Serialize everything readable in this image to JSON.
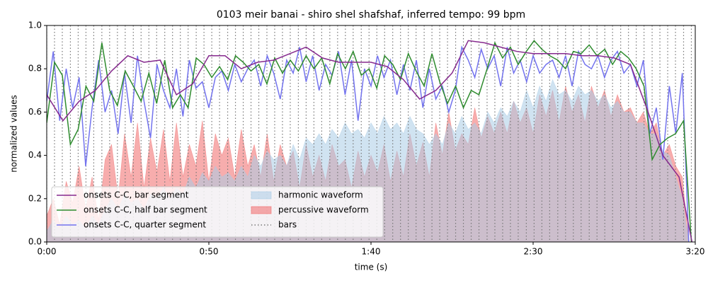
{
  "chart_data": {
    "type": "line",
    "title": "0103 meir banai - shiro shel shafshaf, inferred tempo: 99 bpm",
    "x_label": "time (s)",
    "y_label": "normalized values",
    "xlim": [
      0,
      200
    ],
    "ylim": [
      0,
      1
    ],
    "xticks": [
      {
        "value": 0,
        "label": "0:00"
      },
      {
        "value": 50,
        "label": "0:50"
      },
      {
        "value": 100,
        "label": "1:40"
      },
      {
        "value": 150,
        "label": "2:30"
      },
      {
        "value": 200,
        "label": "3:20"
      }
    ],
    "yticks": [
      {
        "value": 0,
        "label": "0.0"
      },
      0.2,
      0.4,
      0.6,
      0.8,
      {
        "value": 1,
        "label": "1.0"
      }
    ],
    "legend": "lower left",
    "series": [
      {
        "name": "onsets C-C, bar segment",
        "type": "line",
        "color": "#862a8e",
        "x": [
          0,
          5,
          10,
          15,
          20,
          25,
          30,
          35,
          40,
          45,
          50,
          55,
          60,
          65,
          70,
          75,
          80,
          85,
          90,
          95,
          100,
          105,
          110,
          115,
          120,
          125,
          130,
          135,
          140,
          145,
          150,
          155,
          160,
          165,
          170,
          175,
          180,
          185,
          190,
          195,
          199
        ],
        "values": [
          0.68,
          0.56,
          0.65,
          0.7,
          0.79,
          0.86,
          0.83,
          0.84,
          0.68,
          0.73,
          0.86,
          0.86,
          0.8,
          0.83,
          0.84,
          0.87,
          0.9,
          0.85,
          0.83,
          0.83,
          0.83,
          0.81,
          0.75,
          0.66,
          0.7,
          0.78,
          0.93,
          0.92,
          0.9,
          0.88,
          0.87,
          0.87,
          0.87,
          0.86,
          0.86,
          0.85,
          0.82,
          0.62,
          0.4,
          0.3,
          0.0
        ]
      },
      {
        "name": "onsets C-C, half bar segment",
        "type": "line",
        "color": "#2e8b2e",
        "x": [
          0,
          2.4,
          4.8,
          7.3,
          9.7,
          12.1,
          14.5,
          17.0,
          19.4,
          21.8,
          24.2,
          26.7,
          29.1,
          31.5,
          33.9,
          36.4,
          38.8,
          41.2,
          43.6,
          46.1,
          48.5,
          50.9,
          53.3,
          55.8,
          58.2,
          60.6,
          63.0,
          65.4,
          67.9,
          70.3,
          72.7,
          75.1,
          77.6,
          80.0,
          82.4,
          84.8,
          87.3,
          89.7,
          92.1,
          94.5,
          97.0,
          99.4,
          101.8,
          104.2,
          106.7,
          109.1,
          111.5,
          113.9,
          116.4,
          118.8,
          121.2,
          123.6,
          126.1,
          128.5,
          130.9,
          133.3,
          135.8,
          138.2,
          140.6,
          143.0,
          145.4,
          147.9,
          150.3,
          152.7,
          155.1,
          157.6,
          160.0,
          162.4,
          164.8,
          167.3,
          169.7,
          172.1,
          174.5,
          177.0,
          179.4,
          181.8,
          184.2,
          186.7,
          189.1,
          191.5,
          193.9,
          196.4,
          198.8
        ],
        "values": [
          0.55,
          0.83,
          0.77,
          0.45,
          0.52,
          0.72,
          0.65,
          0.92,
          0.7,
          0.63,
          0.79,
          0.72,
          0.65,
          0.78,
          0.64,
          0.84,
          0.62,
          0.68,
          0.62,
          0.85,
          0.82,
          0.76,
          0.81,
          0.75,
          0.86,
          0.83,
          0.79,
          0.82,
          0.73,
          0.85,
          0.78,
          0.84,
          0.79,
          0.86,
          0.8,
          0.85,
          0.73,
          0.87,
          0.8,
          0.88,
          0.77,
          0.8,
          0.71,
          0.86,
          0.82,
          0.75,
          0.87,
          0.79,
          0.72,
          0.87,
          0.74,
          0.64,
          0.72,
          0.62,
          0.7,
          0.68,
          0.8,
          0.92,
          0.85,
          0.9,
          0.82,
          0.88,
          0.93,
          0.89,
          0.86,
          0.84,
          0.8,
          0.88,
          0.87,
          0.91,
          0.86,
          0.89,
          0.82,
          0.88,
          0.85,
          0.8,
          0.72,
          0.38,
          0.45,
          0.48,
          0.5,
          0.56,
          0.0
        ]
      },
      {
        "name": "onsets C-C, quarter segment",
        "type": "line",
        "color": "#7373ee",
        "x": [
          0,
          2,
          4,
          6,
          8,
          10,
          12,
          14,
          16,
          18,
          20,
          22,
          24,
          26,
          28,
          30,
          32,
          34,
          36,
          38,
          40,
          42,
          44,
          46,
          48,
          50,
          52,
          54,
          56,
          58,
          60,
          62,
          64,
          66,
          68,
          70,
          72,
          74,
          76,
          78,
          80,
          82,
          84,
          86,
          88,
          90,
          92,
          94,
          96,
          98,
          100,
          102,
          104,
          106,
          108,
          110,
          112,
          114,
          116,
          118,
          120,
          122,
          124,
          126,
          128,
          130,
          132,
          134,
          136,
          138,
          140,
          142,
          144,
          146,
          148,
          150,
          152,
          154,
          156,
          158,
          160,
          162,
          164,
          166,
          168,
          170,
          172,
          174,
          176,
          178,
          180,
          182,
          184,
          186,
          188,
          190,
          192,
          194,
          196,
          198
        ],
        "values": [
          0.65,
          0.88,
          0.56,
          0.8,
          0.62,
          0.76,
          0.35,
          0.62,
          0.84,
          0.6,
          0.7,
          0.5,
          0.78,
          0.55,
          0.86,
          0.65,
          0.48,
          0.82,
          0.7,
          0.62,
          0.8,
          0.58,
          0.84,
          0.71,
          0.74,
          0.62,
          0.76,
          0.79,
          0.7,
          0.82,
          0.74,
          0.8,
          0.84,
          0.72,
          0.86,
          0.78,
          0.66,
          0.84,
          0.78,
          0.9,
          0.74,
          0.86,
          0.7,
          0.82,
          0.77,
          0.88,
          0.68,
          0.84,
          0.56,
          0.8,
          0.72,
          0.86,
          0.76,
          0.84,
          0.68,
          0.82,
          0.7,
          0.84,
          0.62,
          0.8,
          0.66,
          0.72,
          0.6,
          0.7,
          0.9,
          0.84,
          0.76,
          0.89,
          0.8,
          0.86,
          0.72,
          0.9,
          0.78,
          0.84,
          0.74,
          0.86,
          0.78,
          0.82,
          0.84,
          0.76,
          0.86,
          0.72,
          0.88,
          0.82,
          0.8,
          0.86,
          0.76,
          0.84,
          0.88,
          0.78,
          0.82,
          0.72,
          0.84,
          0.5,
          0.62,
          0.38,
          0.72,
          0.5,
          0.78,
          0.0
        ]
      },
      {
        "name": "harmonic waveform",
        "type": "area",
        "color": "#a9cce6",
        "x": [
          0,
          2,
          4,
          6,
          8,
          10,
          12,
          14,
          16,
          18,
          20,
          22,
          24,
          26,
          28,
          30,
          32,
          34,
          36,
          38,
          40,
          42,
          44,
          46,
          48,
          50,
          52,
          54,
          56,
          58,
          60,
          62,
          64,
          66,
          68,
          70,
          72,
          74,
          76,
          78,
          80,
          82,
          84,
          86,
          88,
          90,
          92,
          94,
          96,
          98,
          100,
          102,
          104,
          106,
          108,
          110,
          112,
          114,
          116,
          118,
          120,
          122,
          124,
          126,
          128,
          130,
          132,
          134,
          136,
          138,
          140,
          142,
          144,
          146,
          148,
          150,
          152,
          154,
          156,
          158,
          160,
          162,
          164,
          166,
          168,
          170,
          172,
          174,
          176,
          178,
          180,
          182,
          184,
          186,
          188,
          190,
          192,
          194,
          196,
          198
        ],
        "values": [
          0.05,
          0.1,
          0.06,
          0.12,
          0.08,
          0.1,
          0.06,
          0.12,
          0.08,
          0.15,
          0.2,
          0.15,
          0.22,
          0.18,
          0.2,
          0.15,
          0.22,
          0.2,
          0.25,
          0.2,
          0.25,
          0.22,
          0.3,
          0.25,
          0.32,
          0.28,
          0.35,
          0.3,
          0.32,
          0.28,
          0.35,
          0.3,
          0.4,
          0.35,
          0.42,
          0.38,
          0.4,
          0.35,
          0.45,
          0.38,
          0.48,
          0.45,
          0.5,
          0.45,
          0.52,
          0.48,
          0.55,
          0.5,
          0.52,
          0.48,
          0.55,
          0.5,
          0.58,
          0.52,
          0.55,
          0.5,
          0.58,
          0.52,
          0.5,
          0.45,
          0.5,
          0.45,
          0.55,
          0.5,
          0.58,
          0.52,
          0.55,
          0.5,
          0.6,
          0.55,
          0.62,
          0.58,
          0.65,
          0.6,
          0.7,
          0.62,
          0.72,
          0.65,
          0.75,
          0.68,
          0.7,
          0.65,
          0.72,
          0.68,
          0.7,
          0.65,
          0.68,
          0.62,
          0.65,
          0.6,
          0.6,
          0.55,
          0.55,
          0.5,
          0.5,
          0.42,
          0.4,
          0.3,
          0.2,
          0.0
        ]
      },
      {
        "name": "percussive waveform",
        "type": "area",
        "color": "#f06a6a",
        "x": [
          0,
          2,
          4,
          6,
          8,
          10,
          12,
          14,
          16,
          18,
          20,
          22,
          24,
          26,
          28,
          30,
          32,
          34,
          36,
          38,
          40,
          42,
          44,
          46,
          48,
          50,
          52,
          54,
          56,
          58,
          60,
          62,
          64,
          66,
          68,
          70,
          72,
          74,
          76,
          78,
          80,
          82,
          84,
          86,
          88,
          90,
          92,
          94,
          96,
          98,
          100,
          102,
          104,
          106,
          108,
          110,
          112,
          114,
          116,
          118,
          120,
          122,
          124,
          126,
          128,
          130,
          132,
          134,
          136,
          138,
          140,
          142,
          144,
          146,
          148,
          150,
          152,
          154,
          156,
          158,
          160,
          162,
          164,
          166,
          168,
          170,
          172,
          174,
          176,
          178,
          180,
          182,
          184,
          186,
          188,
          190,
          192,
          194,
          196,
          198
        ],
        "values": [
          0.12,
          0.2,
          0.08,
          0.28,
          0.18,
          0.35,
          0.15,
          0.3,
          0.1,
          0.38,
          0.45,
          0.2,
          0.5,
          0.3,
          0.55,
          0.25,
          0.48,
          0.32,
          0.52,
          0.28,
          0.55,
          0.3,
          0.45,
          0.35,
          0.56,
          0.28,
          0.5,
          0.4,
          0.48,
          0.3,
          0.52,
          0.35,
          0.45,
          0.3,
          0.5,
          0.28,
          0.45,
          0.35,
          0.42,
          0.25,
          0.45,
          0.3,
          0.4,
          0.28,
          0.45,
          0.35,
          0.38,
          0.25,
          0.42,
          0.3,
          0.4,
          0.32,
          0.45,
          0.28,
          0.42,
          0.3,
          0.5,
          0.35,
          0.46,
          0.3,
          0.55,
          0.4,
          0.6,
          0.42,
          0.5,
          0.45,
          0.62,
          0.48,
          0.58,
          0.5,
          0.6,
          0.5,
          0.65,
          0.55,
          0.62,
          0.5,
          0.68,
          0.58,
          0.7,
          0.55,
          0.72,
          0.6,
          0.68,
          0.55,
          0.72,
          0.62,
          0.7,
          0.58,
          0.68,
          0.6,
          0.62,
          0.55,
          0.6,
          0.5,
          0.55,
          0.4,
          0.45,
          0.35,
          0.3,
          0.0
        ]
      },
      {
        "name": "bars",
        "type": "vlines",
        "color": "#777777",
        "x": [
          0,
          2.4,
          4.8,
          7.3,
          9.7,
          12.1,
          14.5,
          17.0,
          19.4,
          21.8,
          24.2,
          26.7,
          29.1,
          31.5,
          33.9,
          36.4,
          38.8,
          41.2,
          43.6,
          46.1,
          48.5,
          50.9,
          53.3,
          55.8,
          58.2,
          60.6,
          63.0,
          65.4,
          67.9,
          70.3,
          72.7,
          75.1,
          77.6,
          80.0,
          82.4,
          84.8,
          87.3,
          89.7,
          92.1,
          94.5,
          97.0,
          99.4,
          101.8,
          104.2,
          106.7,
          109.1,
          111.5,
          113.9,
          116.4,
          118.8,
          121.2,
          123.6,
          126.1,
          128.5,
          130.9,
          133.3,
          135.8,
          138.2,
          140.6,
          143.0,
          145.4,
          147.9,
          150.3,
          152.7,
          155.1,
          157.6,
          160.0,
          162.4,
          164.8,
          167.3,
          169.7,
          172.1,
          174.5,
          177.0,
          179.4,
          181.8,
          184.2,
          186.7,
          189.1,
          191.5,
          193.9,
          196.4,
          198.8
        ]
      }
    ]
  }
}
